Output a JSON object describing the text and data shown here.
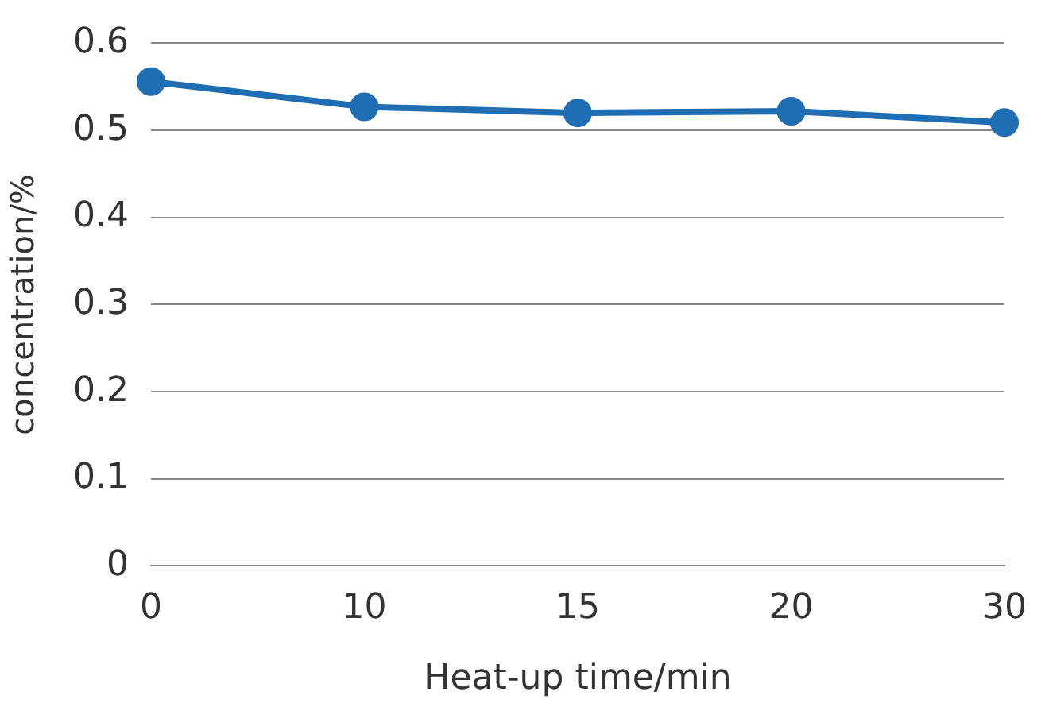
{
  "chart_data": {
    "type": "line",
    "xlabel": "Heat-up time/min",
    "ylabel": "concentration/%",
    "categories": [
      "0",
      "10",
      "15",
      "20",
      "30"
    ],
    "series": [
      {
        "color": "#1f6db3",
        "values": [
          0.556,
          0.527,
          0.52,
          0.522,
          0.509
        ]
      }
    ],
    "ylim": [
      0,
      0.6
    ],
    "yticks": [
      0,
      0.1,
      0.2,
      0.3,
      0.4,
      0.5,
      0.6
    ],
    "grid": "y",
    "legend": false,
    "marker": "circle",
    "line_style": "solid"
  }
}
